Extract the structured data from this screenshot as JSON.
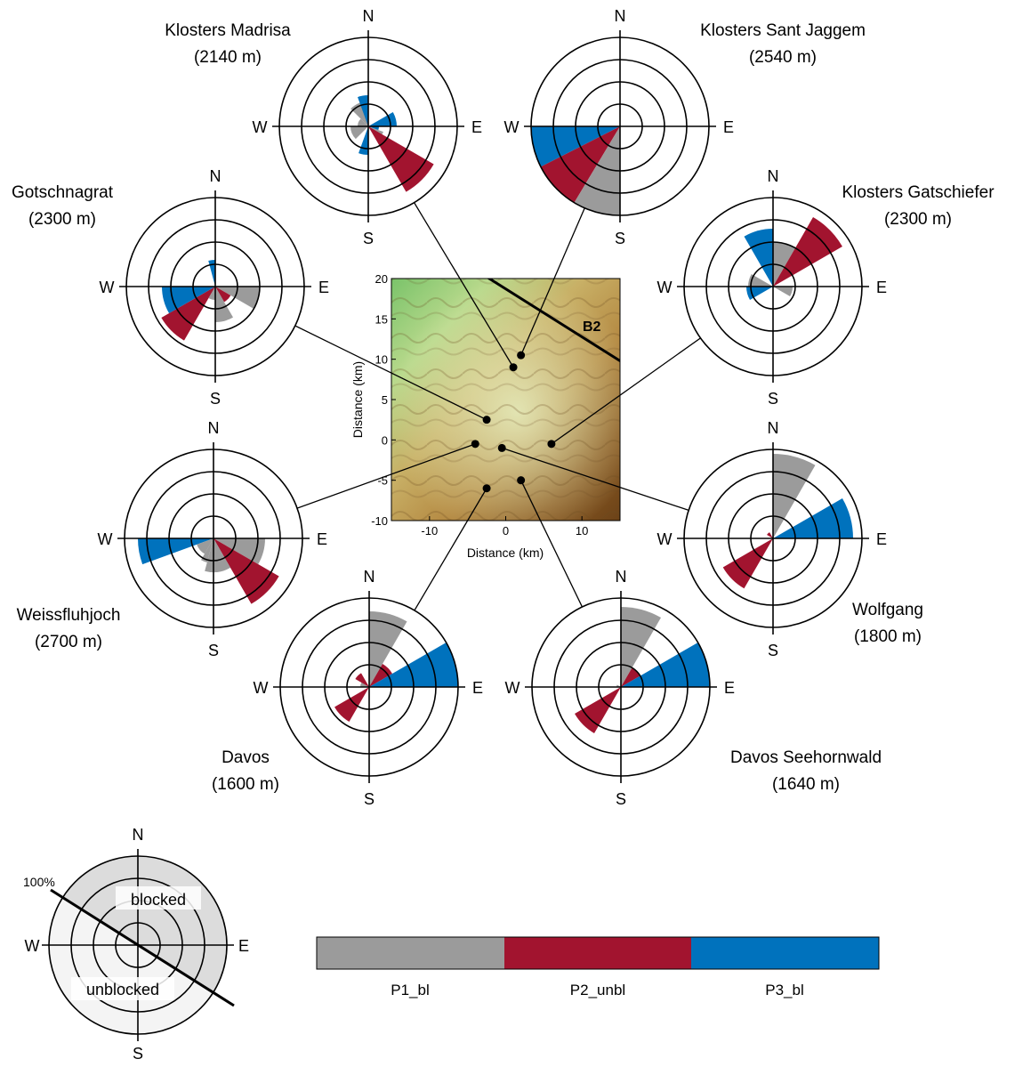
{
  "colors": {
    "P1_bl": "#9b9b9b",
    "P2_unbl": "#a2142f",
    "P3_bl": "#0072bd",
    "ring": "#000000"
  },
  "compass": {
    "N": "N",
    "E": "E",
    "S": "S",
    "W": "W"
  },
  "map": {
    "xlabel": "Distance (km)",
    "ylabel": "Distance (km)",
    "xlim": [
      -15,
      15
    ],
    "ylim": [
      -10,
      20
    ],
    "xticks": [
      -10,
      0,
      10
    ],
    "yticks": [
      -10,
      -5,
      0,
      5,
      10,
      15,
      20
    ],
    "line_label": "B2"
  },
  "chart_data": {
    "type": "windrose",
    "categories": [
      "P1_bl",
      "P2_unbl",
      "P3_bl"
    ],
    "direction_unit": "degrees (0 = N, clockwise)",
    "value_unit": "% (outer ring = 100%)",
    "stations": [
      {
        "name": "Klosters Madrisa",
        "elevation": "(2140 m)",
        "map_xy": [
          1,
          9
        ],
        "sectors": [
          {
            "cat": "P1_bl",
            "from": 315,
            "to": 360,
            "value": 28
          },
          {
            "cat": "P1_bl",
            "from": 225,
            "to": 270,
            "value": 20
          },
          {
            "cat": "P1_bl",
            "from": 270,
            "to": 315,
            "value": 12
          },
          {
            "cat": "P3_bl",
            "from": 340,
            "to": 360,
            "value": 35
          },
          {
            "cat": "P3_bl",
            "from": 60,
            "to": 90,
            "value": 32
          },
          {
            "cat": "P3_bl",
            "from": 180,
            "to": 200,
            "value": 32
          },
          {
            "cat": "P3_bl",
            "from": 90,
            "to": 110,
            "value": 12
          },
          {
            "cat": "P1_bl",
            "from": 110,
            "to": 135,
            "value": 18
          },
          {
            "cat": "P2_unbl",
            "from": 120,
            "to": 150,
            "value": 85
          }
        ]
      },
      {
        "name": "Klosters Sant Jaggem",
        "elevation": "(2540 m)",
        "map_xy": [
          2,
          10.5
        ],
        "sectors": [
          {
            "cat": "P3_bl",
            "from": 243,
            "to": 270,
            "value": 100
          },
          {
            "cat": "P2_unbl",
            "from": 211,
            "to": 243,
            "value": 100
          },
          {
            "cat": "P1_bl",
            "from": 180,
            "to": 211,
            "value": 100
          }
        ]
      },
      {
        "name": "Klosters Gatschiefer",
        "elevation": "(2300 m)",
        "map_xy": [
          6,
          -0.5
        ],
        "sectors": [
          {
            "cat": "P1_bl",
            "from": 0,
            "to": 30,
            "value": 50
          },
          {
            "cat": "P2_unbl",
            "from": 30,
            "to": 60,
            "value": 90
          },
          {
            "cat": "P3_bl",
            "from": 330,
            "to": 360,
            "value": 65
          },
          {
            "cat": "P1_bl",
            "from": 270,
            "to": 300,
            "value": 28
          },
          {
            "cat": "P3_bl",
            "from": 240,
            "to": 270,
            "value": 30
          },
          {
            "cat": "P1_bl",
            "from": 90,
            "to": 120,
            "value": 22
          }
        ]
      },
      {
        "name": "Gotschnagrat",
        "elevation": "(2300 m)",
        "map_xy": [
          -2.5,
          2.5
        ],
        "sectors": [
          {
            "cat": "P3_bl",
            "from": 345,
            "to": 360,
            "value": 30
          },
          {
            "cat": "P1_bl",
            "from": 90,
            "to": 120,
            "value": 50
          },
          {
            "cat": "P2_unbl",
            "from": 120,
            "to": 150,
            "value": 20
          },
          {
            "cat": "P1_bl",
            "from": 150,
            "to": 180,
            "value": 40
          },
          {
            "cat": "P2_unbl",
            "from": 210,
            "to": 240,
            "value": 70
          },
          {
            "cat": "P3_bl",
            "from": 240,
            "to": 270,
            "value": 60
          },
          {
            "cat": "P1_bl",
            "from": 180,
            "to": 210,
            "value": 15
          }
        ]
      },
      {
        "name": "Weissfluhjoch",
        "elevation": "(2700 m)",
        "map_xy": [
          -4,
          -0.5
        ],
        "sectors": [
          {
            "cat": "P1_bl",
            "from": 90,
            "to": 120,
            "value": 58
          },
          {
            "cat": "P2_unbl",
            "from": 120,
            "to": 150,
            "value": 85
          },
          {
            "cat": "P1_bl",
            "from": 150,
            "to": 195,
            "value": 38
          },
          {
            "cat": "P1_bl",
            "from": 195,
            "to": 210,
            "value": 28
          },
          {
            "cat": "P3_bl",
            "from": 250,
            "to": 270,
            "value": 85
          },
          {
            "cat": "P1_bl",
            "from": 210,
            "to": 250,
            "value": 20
          }
        ]
      },
      {
        "name": "Davos",
        "elevation": "(1600 m)",
        "map_xy": [
          -2.5,
          -6
        ],
        "sectors": [
          {
            "cat": "P1_bl",
            "from": 0,
            "to": 30,
            "value": 85
          },
          {
            "cat": "P2_unbl",
            "from": 30,
            "to": 60,
            "value": 30
          },
          {
            "cat": "P3_bl",
            "from": 60,
            "to": 90,
            "value": 100
          },
          {
            "cat": "P2_unbl",
            "from": 210,
            "to": 240,
            "value": 45
          },
          {
            "cat": "P1_bl",
            "from": 270,
            "to": 300,
            "value": 10
          },
          {
            "cat": "P2_unbl",
            "from": 300,
            "to": 330,
            "value": 18
          }
        ]
      },
      {
        "name": "Davos Seehornwald",
        "elevation": "(1640 m)",
        "map_xy": [
          2,
          -5
        ],
        "sectors": [
          {
            "cat": "P1_bl",
            "from": 0,
            "to": 30,
            "value": 90
          },
          {
            "cat": "P2_unbl",
            "from": 30,
            "to": 60,
            "value": 25
          },
          {
            "cat": "P3_bl",
            "from": 60,
            "to": 90,
            "value": 100
          },
          {
            "cat": "P2_unbl",
            "from": 210,
            "to": 240,
            "value": 60
          },
          {
            "cat": "P1_bl",
            "from": 270,
            "to": 300,
            "value": 5
          }
        ]
      },
      {
        "name": "Wolfgang",
        "elevation": "(1800 m)",
        "map_xy": [
          -0.5,
          -1
        ],
        "sectors": [
          {
            "cat": "P1_bl",
            "from": 0,
            "to": 30,
            "value": 95
          },
          {
            "cat": "P3_bl",
            "from": 60,
            "to": 90,
            "value": 90
          },
          {
            "cat": "P2_unbl",
            "from": 210,
            "to": 240,
            "value": 65
          },
          {
            "cat": "P2_unbl",
            "from": 300,
            "to": 330,
            "value": 8
          }
        ]
      }
    ]
  },
  "legend": {
    "items": [
      "P1_bl",
      "P2_unbl",
      "P3_bl"
    ],
    "guide": {
      "pct_label": "100%",
      "blocked": "blocked",
      "unblocked": "unblocked"
    }
  }
}
